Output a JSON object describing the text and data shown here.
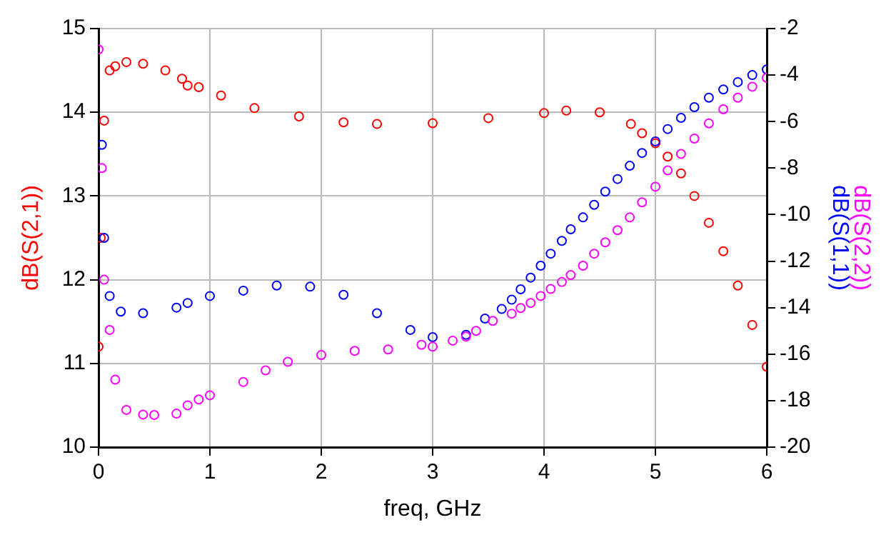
{
  "chart_data": {
    "type": "scatter",
    "xlabel": "freq, GHz",
    "xlim": [
      0,
      6
    ],
    "xticks": [
      0,
      1,
      2,
      3,
      4,
      5,
      6
    ],
    "ylim": [
      10,
      15
    ],
    "yticks": [
      10,
      11,
      12,
      13,
      14,
      15
    ],
    "y2lim": [
      -20,
      -2
    ],
    "y2ticks": [
      -20,
      -18,
      -16,
      -14,
      -12,
      -10,
      -8,
      -6,
      -4,
      -2
    ],
    "grid": true,
    "legend": false,
    "marker": "circle",
    "series": [
      {
        "name": "dB(S(2,1))",
        "color": "#ff0000",
        "x": [
          0,
          0.02,
          0.05,
          0.1,
          0.15,
          0.25,
          0.4,
          0.6,
          0.75,
          0.8,
          0.9,
          1.1,
          1.4,
          1.8,
          2.2,
          2.5,
          3,
          3.5,
          4,
          4.2,
          4.5,
          4.78,
          4.88,
          5,
          5.11,
          5.23,
          5.35,
          5.48,
          5.61,
          5.74,
          5.87,
          6
        ],
        "values": [
          11.2,
          12.5,
          13.9,
          14.5,
          14.55,
          14.6,
          14.58,
          14.5,
          14.4,
          14.32,
          14.3,
          14.2,
          14.05,
          13.95,
          13.88,
          13.86,
          13.87,
          13.93,
          13.99,
          14.02,
          14,
          13.86,
          13.75,
          13.63,
          13.47,
          13.27,
          13,
          12.68,
          12.34,
          11.93,
          11.46,
          10.96
        ]
      },
      {
        "name": "dB(S(1,1))",
        "color": "#0000ff",
        "axis": "y2",
        "x": [
          0.03,
          0.05,
          0.1,
          0.2,
          0.4,
          0.7,
          0.8,
          1,
          1.3,
          1.6,
          1.9,
          2.2,
          2.5,
          2.8,
          3,
          3.3,
          3.47,
          3.62,
          3.71,
          3.79,
          3.88,
          3.97,
          4.06,
          4.16,
          4.24,
          4.35,
          4.45,
          4.55,
          4.66,
          4.77,
          4.88,
          5,
          5.11,
          5.23,
          5.35,
          5.48,
          5.61,
          5.74,
          5.87,
          6
        ],
        "values": [
          -7,
          -11,
          -13.5,
          -14.17,
          -14.24,
          -14,
          -13.8,
          -13.5,
          -13.27,
          -13.05,
          -13.1,
          -13.45,
          -14.24,
          -14.96,
          -15.27,
          -15.17,
          -14.47,
          -14.06,
          -13.66,
          -13.21,
          -12.71,
          -12.2,
          -11.68,
          -11.13,
          -10.63,
          -10.12,
          -9.58,
          -9.01,
          -8.47,
          -7.9,
          -7.35,
          -6.85,
          -6.32,
          -5.84,
          -5.38,
          -4.97,
          -4.62,
          -4.3,
          -4,
          -3.76
        ]
      },
      {
        "name": "dB(S(2,2))",
        "color": "#ff00ff",
        "axis": "y2",
        "x": [
          0,
          0.03,
          0.05,
          0.1,
          0.15,
          0.25,
          0.4,
          0.5,
          0.7,
          0.8,
          0.9,
          1,
          1.3,
          1.5,
          1.7,
          2,
          2.3,
          2.6,
          2.9,
          3,
          3.18,
          3.3,
          3.39,
          3.54,
          3.71,
          3.79,
          3.88,
          3.97,
          4.06,
          4.16,
          4.24,
          4.35,
          4.45,
          4.55,
          4.66,
          4.77,
          4.88,
          5,
          5.11,
          5.23,
          5.35,
          5.48,
          5.61,
          5.74,
          5.87,
          6
        ],
        "values": [
          -2.9,
          -8,
          -12.8,
          -14.96,
          -17.1,
          -18.4,
          -18.6,
          -18.62,
          -18.56,
          -18.2,
          -17.95,
          -17.77,
          -17.2,
          -16.7,
          -16.33,
          -16.04,
          -15.86,
          -15.8,
          -15.6,
          -15.68,
          -15.42,
          -15.25,
          -15,
          -14.57,
          -14.26,
          -14.02,
          -13.8,
          -13.5,
          -13.2,
          -12.9,
          -12.6,
          -12.2,
          -11.68,
          -11.19,
          -10.67,
          -10.12,
          -9.47,
          -8.8,
          -8.1,
          -7.39,
          -6.73,
          -6.08,
          -5.47,
          -4.97,
          -4.5,
          -4.12
        ]
      }
    ]
  }
}
